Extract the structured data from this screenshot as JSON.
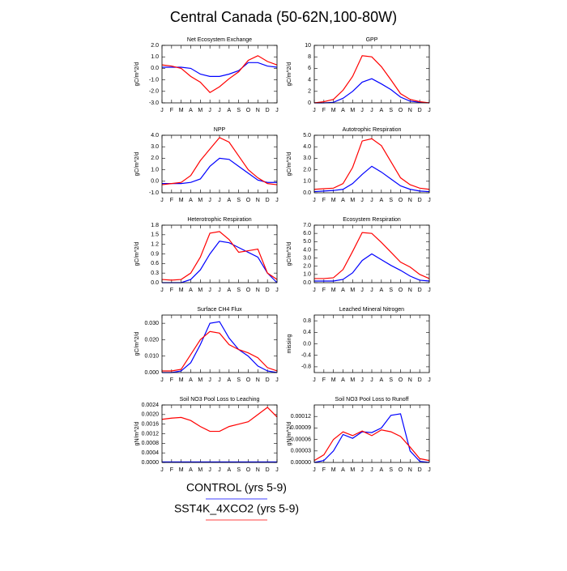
{
  "title": "Central Canada (50-62N,100-80W)",
  "chart_data": [
    {
      "type": "line",
      "title": "Net Ecosystem Exchange",
      "ylabel": "gC/m^2/d",
      "categories": [
        "J",
        "F",
        "M",
        "A",
        "M",
        "J",
        "J",
        "A",
        "S",
        "O",
        "N",
        "D",
        "J"
      ],
      "ylim": [
        -3,
        2
      ],
      "yticks": [
        {
          "value": 2,
          "label": "2.0"
        },
        {
          "value": 1,
          "label": "1.0"
        },
        {
          "value": 0,
          "label": "0.0"
        },
        {
          "value": -1,
          "label": "-1.0"
        },
        {
          "value": -2,
          "label": "-2.0"
        },
        {
          "value": -3,
          "label": "-3.0"
        }
      ],
      "series": [
        {
          "name": "CONTROL (yrs 5-9)",
          "color": "#0000ff",
          "values": [
            0.1,
            0.1,
            0.1,
            0,
            -0.5,
            -0.7,
            -0.7,
            -0.5,
            -0.2,
            0.5,
            0.5,
            0.2,
            0.1
          ]
        },
        {
          "name": "SST4K_4XCO2 (yrs 5-9)",
          "color": "#ff0000",
          "values": [
            0.3,
            0.2,
            0.0,
            -0.7,
            -1.2,
            -2.1,
            -1.6,
            -0.9,
            -0.3,
            0.7,
            1.1,
            0.6,
            0.3
          ]
        }
      ]
    },
    {
      "type": "line",
      "title": "GPP",
      "ylabel": "gC/m^2/d",
      "categories": [
        "J",
        "F",
        "M",
        "A",
        "M",
        "J",
        "J",
        "A",
        "S",
        "O",
        "N",
        "D",
        "J"
      ],
      "ylim": [
        0,
        10
      ],
      "yticks": [
        0,
        2,
        4,
        6,
        8,
        10
      ],
      "series": [
        {
          "name": "CONTROL (yrs 5-9)",
          "color": "#0000ff",
          "values": [
            0,
            0,
            0.1,
            0.8,
            2,
            3.6,
            4.2,
            3.3,
            2.3,
            1,
            0.3,
            0.1,
            0
          ]
        },
        {
          "name": "SST4K_4XCO2 (yrs 5-9)",
          "color": "#ff0000",
          "values": [
            0,
            0.2,
            0.6,
            2.2,
            4.6,
            8.2,
            8,
            6.3,
            4,
            1.6,
            0.6,
            0.2,
            0
          ]
        }
      ]
    },
    {
      "type": "line",
      "title": "NPP",
      "ylabel": "gC/m^2/d",
      "categories": [
        "J",
        "F",
        "M",
        "A",
        "M",
        "J",
        "J",
        "A",
        "S",
        "O",
        "N",
        "D",
        "J"
      ],
      "ylim": [
        -1,
        4
      ],
      "yticks": [
        {
          "value": 4,
          "label": "4.0"
        },
        {
          "value": 3,
          "label": "3.0"
        },
        {
          "value": 2,
          "label": "2.0"
        },
        {
          "value": 1,
          "label": "1.0"
        },
        {
          "value": 0,
          "label": "0.0"
        },
        {
          "value": -1,
          "label": "-1.0"
        }
      ],
      "series": [
        {
          "name": "CONTROL (yrs 5-9)",
          "color": "#0000ff",
          "values": [
            -0.2,
            -0.2,
            -0.2,
            -0.1,
            0.2,
            1.3,
            2.0,
            1.9,
            1.3,
            0.7,
            0.1,
            -0.1,
            -0.1
          ]
        },
        {
          "name": "SST4K_4XCO2 (yrs 5-9)",
          "color": "#ff0000",
          "values": [
            -0.3,
            -0.2,
            -0.1,
            0.5,
            1.8,
            2.8,
            3.8,
            3.4,
            2.2,
            1.0,
            0.3,
            -0.2,
            -0.3
          ]
        }
      ]
    },
    {
      "type": "line",
      "title": "Autotrophic Respiration",
      "ylabel": "gC/m^2/d",
      "categories": [
        "J",
        "F",
        "M",
        "A",
        "M",
        "J",
        "J",
        "A",
        "S",
        "O",
        "N",
        "D",
        "J"
      ],
      "ylim": [
        0,
        5
      ],
      "yticks": [
        {
          "value": 5,
          "label": "5.0"
        },
        {
          "value": 4,
          "label": "4.0"
        },
        {
          "value": 3,
          "label": "3.0"
        },
        {
          "value": 2,
          "label": "2.0"
        },
        {
          "value": 1,
          "label": "1.0"
        },
        {
          "value": 0,
          "label": "0.0"
        }
      ],
      "series": [
        {
          "name": "CONTROL (yrs 5-9)",
          "color": "#0000ff",
          "values": [
            0.1,
            0.15,
            0.2,
            0.3,
            0.8,
            1.6,
            2.3,
            1.8,
            1.2,
            0.6,
            0.3,
            0.15,
            0.1
          ]
        },
        {
          "name": "SST4K_4XCO2 (yrs 5-9)",
          "color": "#ff0000",
          "values": [
            0.3,
            0.35,
            0.4,
            0.8,
            2.2,
            4.5,
            4.7,
            4.1,
            2.7,
            1.3,
            0.7,
            0.4,
            0.3
          ]
        }
      ]
    },
    {
      "type": "line",
      "title": "Heterotrophic Respiration",
      "ylabel": "gC/m^2/d",
      "categories": [
        "J",
        "F",
        "M",
        "A",
        "M",
        "J",
        "J",
        "A",
        "S",
        "O",
        "N",
        "D",
        "J"
      ],
      "ylim": [
        0,
        1.8
      ],
      "yticks": [
        {
          "value": 1.8,
          "label": "1.8"
        },
        {
          "value": 1.5,
          "label": "1.5"
        },
        {
          "value": 1.2,
          "label": "1.2"
        },
        {
          "value": 0.9,
          "label": "0.9"
        },
        {
          "value": 0.6,
          "label": "0.6"
        },
        {
          "value": 0.3,
          "label": "0.3"
        },
        {
          "value": 0,
          "label": "0.0"
        }
      ],
      "series": [
        {
          "name": "CONTROL (yrs 5-9)",
          "color": "#0000ff",
          "values": [
            0,
            0,
            0,
            0.1,
            0.4,
            0.9,
            1.3,
            1.25,
            1.1,
            0.95,
            0.8,
            0.3,
            0
          ]
        },
        {
          "name": "SST4K_4XCO2 (yrs 5-9)",
          "color": "#ff0000",
          "values": [
            0.1,
            0.08,
            0.1,
            0.3,
            0.8,
            1.55,
            1.6,
            1.35,
            0.95,
            1.0,
            1.05,
            0.3,
            0.1
          ]
        }
      ]
    },
    {
      "type": "line",
      "title": "Ecosystem Respiration",
      "ylabel": "gC/m^2/d",
      "categories": [
        "J",
        "F",
        "M",
        "A",
        "M",
        "J",
        "J",
        "A",
        "S",
        "O",
        "N",
        "D",
        "J"
      ],
      "ylim": [
        0,
        7
      ],
      "yticks": [
        {
          "value": 7,
          "label": "7.0"
        },
        {
          "value": 6,
          "label": "6.0"
        },
        {
          "value": 5,
          "label": "5.0"
        },
        {
          "value": 4,
          "label": "4.0"
        },
        {
          "value": 3,
          "label": "3.0"
        },
        {
          "value": 2,
          "label": "2.0"
        },
        {
          "value": 1,
          "label": "1.0"
        },
        {
          "value": 0,
          "label": "0.0"
        }
      ],
      "series": [
        {
          "name": "CONTROL (yrs 5-9)",
          "color": "#0000ff",
          "values": [
            0.2,
            0.2,
            0.2,
            0.4,
            1.2,
            2.7,
            3.5,
            2.8,
            2.1,
            1.5,
            0.8,
            0.3,
            0.2
          ]
        },
        {
          "name": "SST4K_4XCO2 (yrs 5-9)",
          "color": "#ff0000",
          "values": [
            0.5,
            0.5,
            0.6,
            1.6,
            3.8,
            6.1,
            6.0,
            4.9,
            3.7,
            2.5,
            1.9,
            1.0,
            0.5
          ]
        }
      ]
    },
    {
      "type": "line",
      "title": "Surface CH4 Flux",
      "ylabel": "gC/m^2/d",
      "categories": [
        "J",
        "F",
        "M",
        "A",
        "M",
        "J",
        "J",
        "A",
        "S",
        "O",
        "N",
        "D",
        "J"
      ],
      "ylim": [
        0,
        0.035
      ],
      "yticks": [
        {
          "value": 0.03,
          "label": "0.030"
        },
        {
          "value": 0.02,
          "label": "0.020"
        },
        {
          "value": 0.01,
          "label": "0.010"
        },
        {
          "value": 0,
          "label": "0.000"
        }
      ],
      "series": [
        {
          "name": "CONTROL (yrs 5-9)",
          "color": "#0000ff",
          "values": [
            0,
            0,
            0.001,
            0.006,
            0.017,
            0.03,
            0.031,
            0.021,
            0.014,
            0.01,
            0.004,
            0.001,
            0
          ]
        },
        {
          "name": "SST4K_4XCO2 (yrs 5-9)",
          "color": "#ff0000",
          "values": [
            0.001,
            0.001,
            0.002,
            0.011,
            0.02,
            0.025,
            0.024,
            0.017,
            0.014,
            0.012,
            0.009,
            0.003,
            0.001
          ]
        }
      ]
    },
    {
      "type": "line",
      "title": "Leached Mineral Nitrogen",
      "ylabel": "missing",
      "categories": [
        "J",
        "F",
        "M",
        "A",
        "M",
        "J",
        "J",
        "A",
        "S",
        "O",
        "N",
        "D",
        "J"
      ],
      "ylim": [
        -1,
        1
      ],
      "yticks": [
        0.8,
        0.4,
        {
          "value": 0,
          "label": "0.0"
        },
        -0.4,
        -0.8
      ],
      "series": []
    },
    {
      "type": "line",
      "title": "Soil NO3 Pool Loss to Leaching",
      "ylabel": "gN/m^2/d",
      "categories": [
        "J",
        "F",
        "M",
        "A",
        "M",
        "J",
        "J",
        "A",
        "S",
        "O",
        "N",
        "D",
        "J"
      ],
      "ylim": [
        0,
        0.0024
      ],
      "yticks": [
        {
          "value": 0.0024,
          "label": "0.0024"
        },
        {
          "value": 0.002,
          "label": "0.0020"
        },
        {
          "value": 0.0016,
          "label": "0.0016"
        },
        {
          "value": 0.0012,
          "label": "0.0012"
        },
        {
          "value": 0.0008,
          "label": "0.0008"
        },
        {
          "value": 0.0004,
          "label": "0.0004"
        },
        {
          "value": 0,
          "label": "0.0000"
        }
      ],
      "series": [
        {
          "name": "CONTROL (yrs 5-9)",
          "color": "#0000ff",
          "values": [
            2e-05,
            2e-05,
            2e-05,
            2e-05,
            2e-05,
            2e-05,
            2e-05,
            2e-05,
            2e-05,
            2e-05,
            2e-05,
            2e-05,
            2e-05
          ]
        },
        {
          "name": "SST4K_4XCO2 (yrs 5-9)",
          "color": "#ff0000",
          "values": [
            0.0018,
            0.00185,
            0.00188,
            0.00175,
            0.0015,
            0.0013,
            0.0013,
            0.0015,
            0.0016,
            0.0017,
            0.002,
            0.0023,
            0.0019
          ]
        }
      ]
    },
    {
      "type": "line",
      "title": "Soil NO3 Pool Loss to Runoff",
      "ylabel": "gN/m^2/d",
      "categories": [
        "J",
        "F",
        "M",
        "A",
        "M",
        "J",
        "J",
        "A",
        "S",
        "O",
        "N",
        "D",
        "J"
      ],
      "ylim": [
        0,
        0.00015
      ],
      "yticks": [
        {
          "value": 0.00012,
          "label": "0.00012"
        },
        {
          "value": 9e-05,
          "label": "0.00009"
        },
        {
          "value": 6e-05,
          "label": "0.00006"
        },
        {
          "value": 3e-05,
          "label": "0.00003"
        },
        {
          "value": 0,
          "label": "0.00000"
        }
      ],
      "series": [
        {
          "name": "CONTROL (yrs 5-9)",
          "color": "#0000ff",
          "values": [
            0,
            5e-06,
            3e-05,
            7.3e-05,
            6.3e-05,
            8e-05,
            7.8e-05,
            9e-05,
            0.000123,
            0.000127,
            3e-05,
            3e-06,
            0
          ]
        },
        {
          "name": "SST4K_4XCO2 (yrs 5-9)",
          "color": "#ff0000",
          "values": [
            5e-06,
            2e-05,
            6e-05,
            8e-05,
            7e-05,
            8.2e-05,
            7e-05,
            8.5e-05,
            8e-05,
            6.8e-05,
            4e-05,
            1e-05,
            5e-06
          ]
        }
      ]
    }
  ]
}
